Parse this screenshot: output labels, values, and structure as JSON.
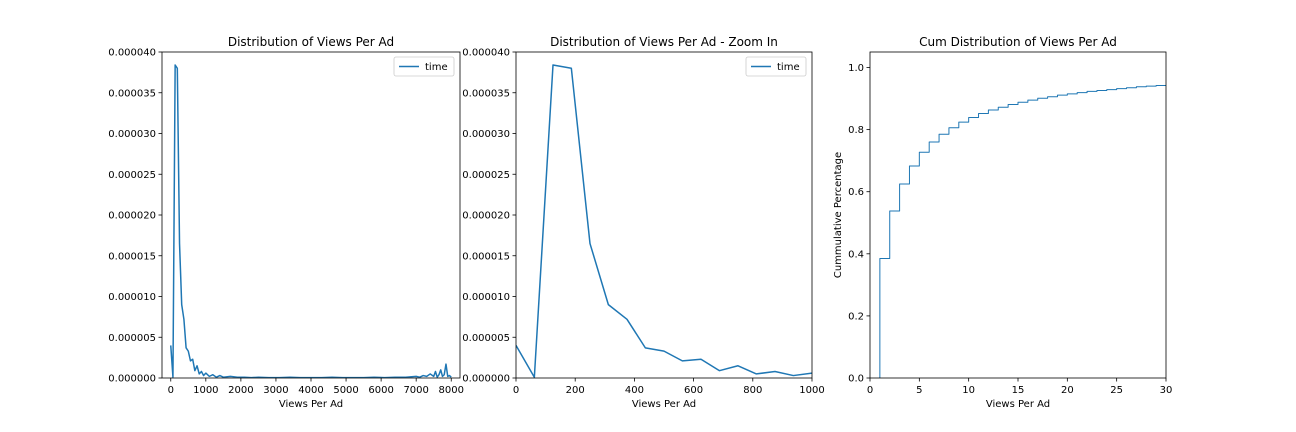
{
  "chart_data": [
    {
      "type": "line",
      "title": "Distribution of Views Per Ad",
      "xlabel": "Views Per Ad",
      "ylabel": "",
      "xlim": [
        -250,
        8250
      ],
      "ylim": [
        0,
        4e-05
      ],
      "xticks": [
        0,
        1000,
        2000,
        3000,
        4000,
        5000,
        6000,
        7000,
        8000
      ],
      "xtick_labels": [
        "0",
        "1000",
        "2000",
        "3000",
        "4000",
        "5000",
        "6000",
        "7000",
        "8000"
      ],
      "yticks": [
        0,
        5e-06,
        1e-05,
        1.5e-05,
        2e-05,
        2.5e-05,
        3e-05,
        3.5e-05,
        4e-05
      ],
      "ytick_labels": [
        "0.000000",
        "0.000005",
        "0.000010",
        "0.000015",
        "0.000020",
        "0.000025",
        "0.000030",
        "0.000035",
        "0.000040"
      ],
      "legend": "upper-right",
      "grid": false,
      "color": "#1f77b4",
      "series": [
        {
          "name": "time",
          "x": [
            0,
            62,
            125,
            187,
            250,
            312,
            375,
            437,
            500,
            562,
            625,
            687,
            750,
            812,
            875,
            937,
            1000,
            1100,
            1200,
            1300,
            1400,
            1500,
            1700,
            1900,
            2100,
            2300,
            2500,
            2800,
            3100,
            3400,
            3700,
            4000,
            4300,
            4600,
            4900,
            5200,
            5500,
            5800,
            6100,
            6400,
            6700,
            7000,
            7100,
            7200,
            7300,
            7400,
            7500,
            7550,
            7600,
            7650,
            7700,
            7750,
            7800,
            7850,
            7900,
            7950,
            8000
          ],
          "y": [
            4e-06,
            1e-07,
            3.84e-05,
            3.8e-05,
            1.65e-05,
            9e-06,
            7.2e-06,
            3.7e-06,
            3.3e-06,
            2.1e-06,
            2.3e-06,
            9e-07,
            1.5e-06,
            5e-07,
            8e-07,
            3e-07,
            6e-07,
            2e-07,
            4e-07,
            1e-07,
            3e-07,
            1e-07,
            2e-07,
            1e-07,
            1e-07,
            5e-08,
            1e-07,
            5e-08,
            5e-08,
            1e-07,
            5e-08,
            5e-08,
            5e-08,
            1e-07,
            5e-08,
            5e-08,
            5e-08,
            1e-07,
            5e-08,
            1e-07,
            1e-07,
            2e-07,
            1e-07,
            3e-07,
            2e-07,
            5e-07,
            2e-07,
            8e-07,
            1e-07,
            4e-07,
            1e-06,
            2e-07,
            4e-07,
            1.7e-06,
            2e-07,
            3e-07,
            1e-07
          ]
        }
      ]
    },
    {
      "type": "line",
      "title": "Distribution of Views Per Ad - Zoom In",
      "xlabel": "Views Per Ad",
      "ylabel": "",
      "xlim": [
        0,
        1000
      ],
      "ylim": [
        0,
        4e-05
      ],
      "xticks": [
        0,
        200,
        400,
        600,
        800,
        1000
      ],
      "xtick_labels": [
        "0",
        "200",
        "400",
        "600",
        "800",
        "1000"
      ],
      "yticks": [
        0,
        5e-06,
        1e-05,
        1.5e-05,
        2e-05,
        2.5e-05,
        3e-05,
        3.5e-05,
        4e-05
      ],
      "ytick_labels": [
        "0.000000",
        "0.000005",
        "0.000010",
        "0.000015",
        "0.000020",
        "0.000025",
        "0.000030",
        "0.000035",
        "0.000040"
      ],
      "legend": "upper-right",
      "grid": false,
      "color": "#1f77b4",
      "series": [
        {
          "name": "time",
          "x": [
            0,
            62,
            125,
            187,
            250,
            312,
            375,
            437,
            500,
            562,
            625,
            687,
            750,
            812,
            875,
            937,
            1000
          ],
          "y": [
            4e-06,
            1e-07,
            3.84e-05,
            3.8e-05,
            1.65e-05,
            9e-06,
            7.2e-06,
            3.7e-06,
            3.3e-06,
            2.1e-06,
            2.3e-06,
            9e-07,
            1.5e-06,
            5e-07,
            8e-07,
            3e-07,
            6e-07
          ]
        }
      ]
    },
    {
      "type": "line",
      "step": true,
      "title": "Cum Distribution of Views Per Ad",
      "xlabel": "Views Per Ad",
      "ylabel": "Cummulative Percentage",
      "xlim": [
        0,
        30
      ],
      "ylim": [
        0,
        1.05
      ],
      "xticks": [
        0,
        5,
        10,
        15,
        20,
        25,
        30
      ],
      "xtick_labels": [
        "0",
        "5",
        "10",
        "15",
        "20",
        "25",
        "30"
      ],
      "yticks": [
        0,
        0.2,
        0.4,
        0.6,
        0.8,
        1.0
      ],
      "ytick_labels": [
        "0.0",
        "0.2",
        "0.4",
        "0.6",
        "0.8",
        "1.0"
      ],
      "grid": false,
      "color": "#1f77b4",
      "series": [
        {
          "x": [
            1,
            2,
            3,
            4,
            5,
            6,
            7,
            8,
            9,
            10,
            11,
            12,
            13,
            14,
            15,
            16,
            17,
            18,
            19,
            20,
            21,
            22,
            23,
            24,
            25,
            26,
            27,
            28,
            29,
            30
          ],
          "y": [
            0.385,
            0.538,
            0.625,
            0.683,
            0.727,
            0.76,
            0.785,
            0.806,
            0.824,
            0.839,
            0.852,
            0.863,
            0.872,
            0.881,
            0.888,
            0.895,
            0.901,
            0.906,
            0.911,
            0.915,
            0.919,
            0.923,
            0.926,
            0.929,
            0.932,
            0.935,
            0.938,
            0.94,
            0.942,
            0.944
          ]
        }
      ]
    }
  ]
}
